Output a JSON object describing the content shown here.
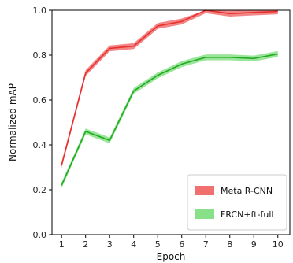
{
  "chart_data": {
    "type": "line",
    "xlabel": "Epoch",
    "ylabel": "Normalized mAP",
    "x": [
      1,
      2,
      3,
      4,
      5,
      6,
      7,
      8,
      9,
      10
    ],
    "xlim": [
      0.6,
      10.5
    ],
    "ylim": [
      0.0,
      1.0
    ],
    "xticks": [
      "1",
      "2",
      "3",
      "4",
      "5",
      "6",
      "7",
      "8",
      "9",
      "10"
    ],
    "yticks": [
      "0.0",
      "0.2",
      "0.4",
      "0.6",
      "0.8",
      "1.0"
    ],
    "grid": false,
    "legend_position": "bottom-right",
    "series": [
      {
        "name": "Meta R-CNN",
        "values": [
          0.31,
          0.72,
          0.83,
          0.84,
          0.93,
          0.95,
          1.0,
          0.985,
          0.99,
          0.995
        ],
        "band": 0.013,
        "line_color": "#e8302e",
        "band_color": "#f07070"
      },
      {
        "name": "FRCN+ft-full",
        "values": [
          0.22,
          0.46,
          0.42,
          0.64,
          0.71,
          0.76,
          0.79,
          0.79,
          0.785,
          0.805
        ],
        "band": 0.013,
        "line_color": "#22aa22",
        "band_color": "#88e088"
      }
    ]
  }
}
